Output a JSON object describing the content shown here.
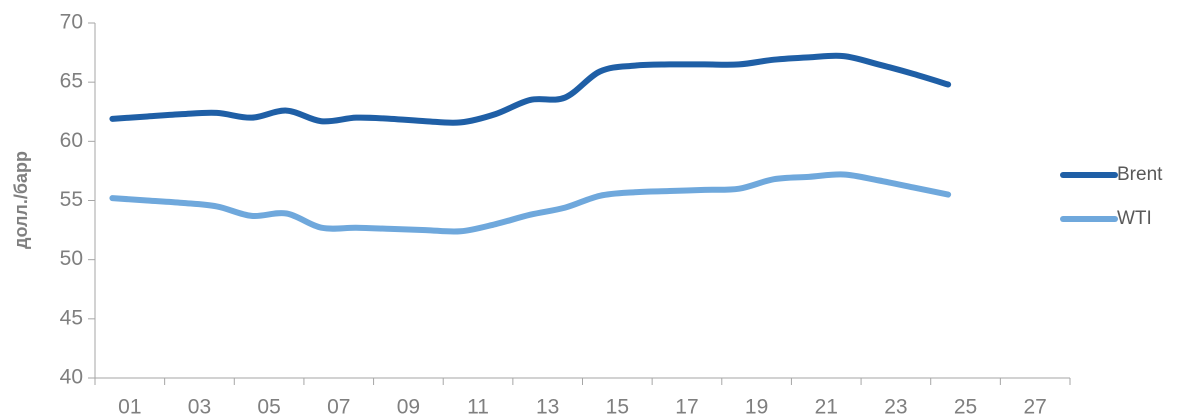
{
  "chart_data": {
    "type": "line",
    "y_label": "долл./барр",
    "categories": [
      "01",
      null,
      "03",
      null,
      "05",
      null,
      "07",
      null,
      "09",
      null,
      "11",
      null,
      "13",
      null,
      "15",
      null,
      "17",
      null,
      "19",
      null,
      "21",
      null,
      "23",
      null,
      "25",
      null,
      "27",
      null
    ],
    "series": [
      {
        "name": "Brent",
        "color": "#1f5fa6",
        "values": [
          61.9,
          62.1,
          62.3,
          62.4,
          62.0,
          62.6,
          61.7,
          62.0,
          61.9,
          61.7,
          61.6,
          62.3,
          63.5,
          63.7,
          65.9,
          66.4,
          66.5,
          66.5,
          66.5,
          66.9,
          67.1,
          67.2,
          66.5,
          65.7,
          64.8,
          null,
          null,
          null
        ]
      },
      {
        "name": "WTI",
        "color": "#6fa8dc",
        "values": [
          55.2,
          55.0,
          54.8,
          54.5,
          53.7,
          53.9,
          52.7,
          52.7,
          52.6,
          52.5,
          52.4,
          53.0,
          53.8,
          54.4,
          55.4,
          55.7,
          55.8,
          55.9,
          56.0,
          56.8,
          57.0,
          57.2,
          56.7,
          56.1,
          55.5,
          null,
          null,
          null
        ]
      }
    ],
    "ylim": [
      40,
      70
    ],
    "yticks": [
      40,
      45,
      50,
      55,
      60,
      65,
      70
    ],
    "legend": "right"
  }
}
